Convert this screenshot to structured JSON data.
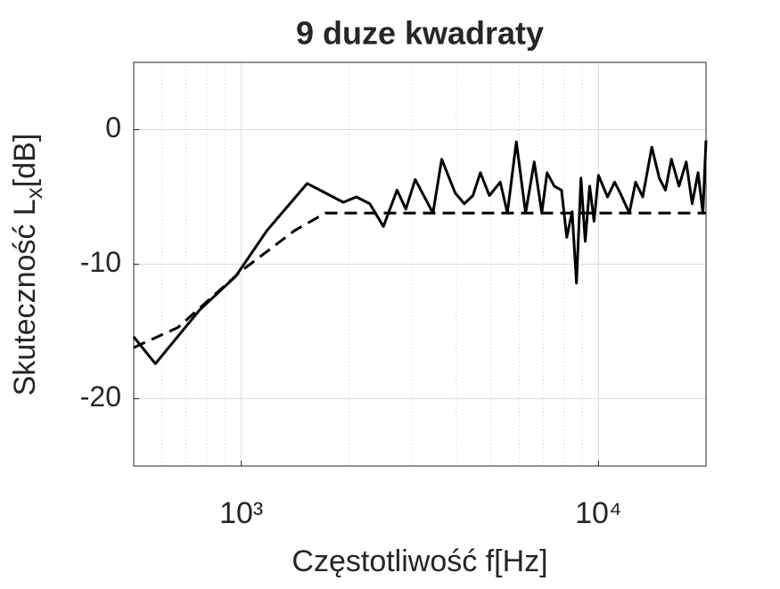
{
  "chart_data": {
    "type": "line",
    "title": "9 duze kwadraty",
    "xlabel": "Częstotliwość f[Hz]",
    "ylabel": {
      "main": "Skuteczność L",
      "sub": "x",
      "rest": "[dB]"
    },
    "xscale": "log",
    "xlim": [
      500,
      20000
    ],
    "ylim": [
      -25,
      5
    ],
    "xticks": [
      {
        "value": 1000,
        "label": "10³"
      },
      {
        "value": 10000,
        "label": "10⁴"
      }
    ],
    "yticks": [
      -20,
      -10,
      0
    ],
    "grid": true,
    "minor_grid": true,
    "series": [
      {
        "color": "#000000",
        "dash": false,
        "x": [
          500,
          575,
          765,
          965,
          1180,
          1530,
          1720,
          1930,
          2100,
          2290,
          2500,
          2730,
          2890,
          3070,
          3440,
          3640,
          3970,
          4210,
          4450,
          4670,
          4950,
          5310,
          5560,
          5890,
          6250,
          6610,
          6940,
          7180,
          7520,
          7880,
          8150,
          8440,
          8680,
          8930,
          9180,
          9450,
          9720,
          10000,
          10600,
          11100,
          11500,
          12200,
          12700,
          13300,
          14100,
          14800,
          15400,
          16000,
          16800,
          17600,
          18300,
          19000,
          19600,
          20000
        ],
        "values": [
          -15.4,
          -17.4,
          -13.4,
          -10.9,
          -7.5,
          -4.0,
          -4.7,
          -5.4,
          -5.0,
          -5.5,
          -7.2,
          -4.5,
          -5.9,
          -3.7,
          -6.2,
          -2.2,
          -4.7,
          -5.5,
          -4.9,
          -3.2,
          -4.9,
          -3.9,
          -6.2,
          -0.9,
          -6.2,
          -2.4,
          -6.2,
          -3.2,
          -4.2,
          -4.5,
          -8.0,
          -6.1,
          -11.4,
          -3.6,
          -8.3,
          -4.2,
          -6.8,
          -3.4,
          -5.0,
          -3.9,
          -4.7,
          -6.2,
          -3.9,
          -5.0,
          -1.3,
          -3.6,
          -4.5,
          -2.2,
          -4.2,
          -2.4,
          -5.5,
          -3.2,
          -6.2,
          -0.8
        ]
      },
      {
        "color": "#000000",
        "dash": true,
        "x": [
          500,
          665,
          1000,
          1410,
          1720,
          20000
        ],
        "values": [
          -16.2,
          -14.7,
          -10.5,
          -7.5,
          -6.2,
          -6.2
        ]
      }
    ]
  }
}
